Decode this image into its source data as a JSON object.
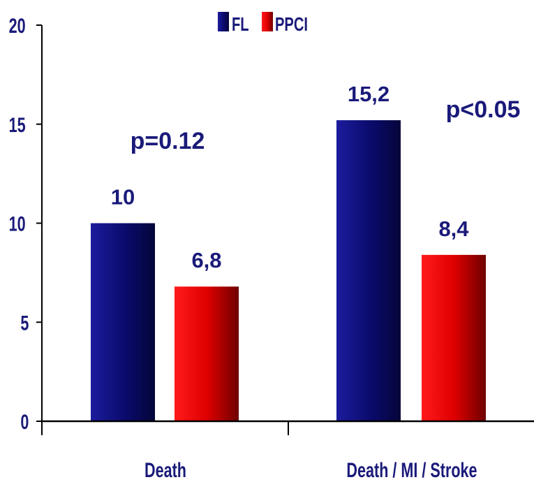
{
  "chart_data": {
    "type": "bar",
    "title": "",
    "xlabel": "",
    "ylabel": "",
    "categories": [
      "Death",
      "Death / MI / Stroke"
    ],
    "series": [
      {
        "name": "FL",
        "values": [
          10,
          15.2
        ],
        "value_labels": [
          "10",
          "15,2"
        ],
        "color": "#0a0a6b"
      },
      {
        "name": "PPCI",
        "values": [
          6.8,
          8.4
        ],
        "value_labels": [
          "6,8",
          "8,4"
        ],
        "color": "#e60000"
      }
    ],
    "ylim": [
      0,
      20
    ],
    "yticks": [
      0,
      5,
      10,
      15,
      20
    ],
    "ytick_labels": [
      "0",
      "5",
      "10",
      "15",
      "20"
    ],
    "grid": false,
    "legend": "top-center",
    "annotations": [
      "p=0.12",
      "p<0.05"
    ],
    "colors": {
      "text": "#1a1a7a",
      "axis": "#000000"
    }
  }
}
